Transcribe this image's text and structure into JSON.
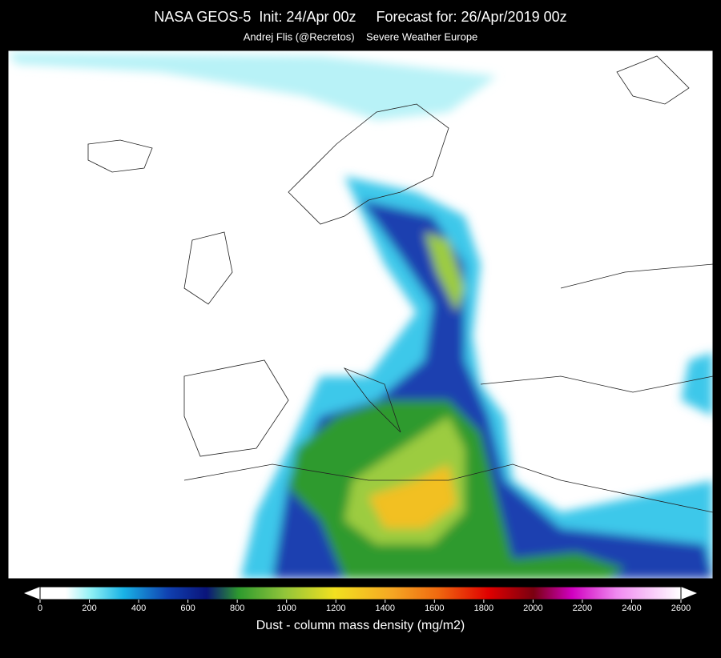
{
  "header": {
    "title": "NASA GEOS-5  Init: 24/Apr 00z     Forecast for: 26/Apr/2019 00z",
    "subtitle": "Andrej Flis (@Recretos)    Severe Weather Europe"
  },
  "colorbar": {
    "label": "Dust - column mass density (mg/m2)",
    "lim": [
      0,
      2600
    ],
    "ticks": [
      0,
      200,
      400,
      600,
      800,
      1000,
      1200,
      1400,
      1600,
      1800,
      2000,
      2200,
      2400,
      2600
    ]
  }
}
